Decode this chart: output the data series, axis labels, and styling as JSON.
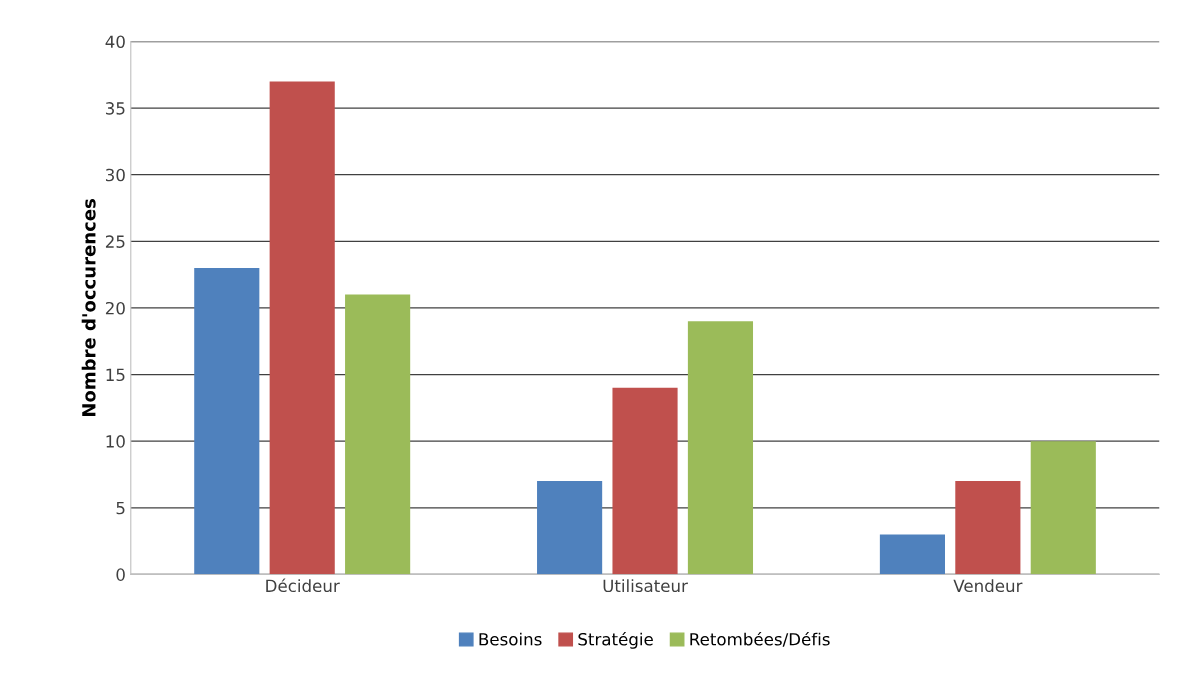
{
  "chart_data": {
    "type": "bar",
    "ylabel": "Nombre d'occurences",
    "categories": [
      "Décideur",
      "Utilisateur",
      "Vendeur"
    ],
    "series": [
      {
        "name": "Besoins",
        "color": "#4f81bd",
        "values": [
          23,
          7,
          3
        ]
      },
      {
        "name": "Stratégie",
        "color": "#c0504d",
        "values": [
          37,
          14,
          7
        ]
      },
      {
        "name": "Retombées/Défis",
        "color": "#9bbb59",
        "values": [
          21,
          19,
          10
        ]
      }
    ],
    "ylim": [
      0,
      40
    ],
    "yticks": [
      0,
      5,
      10,
      15,
      20,
      25,
      30,
      35,
      40
    ],
    "grid": "y",
    "legend": "bottom"
  }
}
